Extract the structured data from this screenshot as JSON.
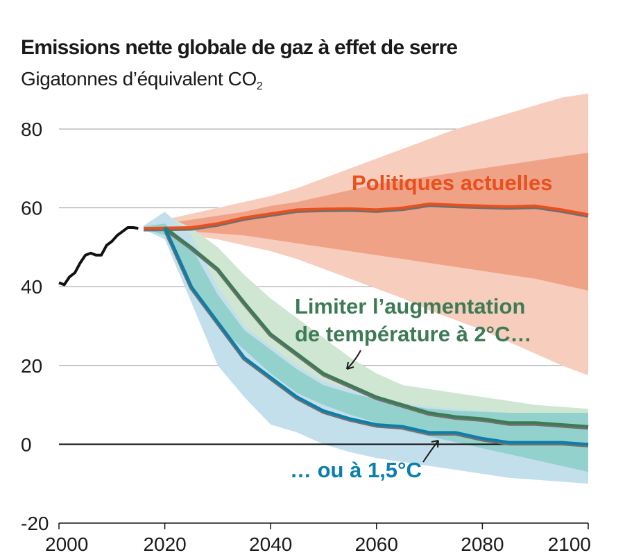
{
  "chart_data": {
    "type": "line",
    "title": "Emissions nette globale de gaz à effet de serre",
    "subtitle_main": "Gigatonnes d’équivalent CO",
    "subtitle_sub": "2",
    "xlim": [
      2000,
      2100
    ],
    "ylim": [
      -20,
      80
    ],
    "x_ticks": [
      2000,
      2020,
      2040,
      2060,
      2080,
      2100
    ],
    "y_ticks": [
      80,
      60,
      40,
      20,
      0,
      -20
    ],
    "grid": "horizontal",
    "colors": {
      "historical": "#111111",
      "current_policies": "#e8501e",
      "current_policies_inner": "#f0a287",
      "current_policies_outer": "#f7cdbd",
      "two_degrees": "#3d7b55",
      "two_degrees_band": "#cfe6d2",
      "one_five_degrees": "#0b7fac",
      "one_five_degrees_band": "#c4dfec",
      "overlap_band": "#8ecfca"
    },
    "historical": {
      "x": [
        2000,
        2001,
        2002,
        2003,
        2004,
        2005,
        2006,
        2007,
        2008,
        2009,
        2010,
        2011,
        2012,
        2013,
        2014,
        2015
      ],
      "y": [
        41,
        40.5,
        42.5,
        43.5,
        46,
        48,
        48.5,
        48,
        48,
        50.5,
        51.5,
        53,
        54,
        55,
        55,
        54.8
      ]
    },
    "bands": [
      {
        "key": "current_policies_outer",
        "color_key": "current_policies_outer",
        "x": [
          2016,
          2020,
          2025,
          2030,
          2035,
          2040,
          2045,
          2050,
          2055,
          2060,
          2065,
          2070,
          2075,
          2080,
          2085,
          2090,
          2095,
          2100
        ],
        "upper": [
          55.5,
          57,
          58.5,
          60,
          61.5,
          63,
          65,
          67.5,
          70,
          72.5,
          75,
          77.5,
          80,
          82,
          84,
          86,
          88,
          89
        ],
        "lower": [
          54.5,
          54,
          53,
          52,
          50.5,
          49,
          47,
          44.5,
          42,
          39.5,
          37,
          34,
          31.5,
          29,
          26,
          23,
          20,
          17.5
        ]
      },
      {
        "key": "current_policies_inner",
        "color_key": "current_policies_inner",
        "x": [
          2016,
          2020,
          2025,
          2030,
          2035,
          2040,
          2045,
          2050,
          2055,
          2060,
          2065,
          2070,
          2075,
          2080,
          2085,
          2090,
          2095,
          2100
        ],
        "upper": [
          55.3,
          56,
          57,
          58,
          59,
          60.5,
          61.5,
          63,
          64.5,
          66,
          67,
          68,
          69,
          70,
          71,
          72,
          73,
          74
        ],
        "lower": [
          54.7,
          54.5,
          54,
          53.5,
          53,
          52,
          51,
          50,
          49,
          48,
          47,
          46,
          45,
          44,
          43,
          42,
          40.5,
          39
        ]
      },
      {
        "key": "two_degrees",
        "color_key": "two_degrees_band",
        "x": [
          2016,
          2020,
          2025,
          2030,
          2035,
          2040,
          2045,
          2050,
          2055,
          2060,
          2065,
          2070,
          2075,
          2080,
          2085,
          2090,
          2095,
          2100
        ],
        "upper": [
          55.5,
          58,
          55,
          50,
          43,
          37,
          32,
          27,
          22,
          18,
          15,
          14,
          13,
          12,
          11,
          10,
          9.5,
          9
        ],
        "lower": [
          54.5,
          53,
          42,
          32,
          25,
          19,
          14,
          11,
          8.5,
          6,
          4,
          2.5,
          1,
          0,
          -0.5,
          -0.5,
          -0.5,
          -0.5
        ]
      },
      {
        "key": "one_five_degrees",
        "color_key": "one_five_degrees_band",
        "x": [
          2016,
          2020,
          2025,
          2030,
          2035,
          2040,
          2045,
          2050,
          2055,
          2060,
          2065,
          2070,
          2075,
          2080,
          2085,
          2090,
          2095,
          2100
        ],
        "upper": [
          55.5,
          59,
          53,
          40,
          30,
          25,
          20,
          16,
          14,
          12,
          10.5,
          9.5,
          9,
          8.5,
          8,
          8,
          8,
          8
        ],
        "lower": [
          54.5,
          52,
          36,
          20,
          12,
          5,
          3,
          0,
          -2,
          -3.5,
          -4.5,
          -5.5,
          -6.5,
          -7.5,
          -8.5,
          -9,
          -9.5,
          -10
        ]
      },
      {
        "key": "overlap",
        "color_key": "overlap_band",
        "x": [
          2016,
          2020,
          2025,
          2030,
          2035,
          2040,
          2045,
          2050,
          2055,
          2060,
          2065,
          2070,
          2075,
          2080,
          2085,
          2090,
          2095,
          2100
        ],
        "upper": [
          55.3,
          56,
          50,
          38,
          29,
          24,
          19,
          15,
          13,
          11.5,
          10,
          9,
          8.5,
          8.2,
          8,
          8,
          8,
          8
        ],
        "lower": [
          54.7,
          53,
          40,
          30,
          24,
          18,
          13,
          10,
          7.5,
          5.5,
          3.5,
          2,
          0.5,
          -1,
          -2.5,
          -4,
          -5.5,
          -7
        ]
      }
    ],
    "series": [
      {
        "name": "Politiques actuelles",
        "color_key": "current_policies",
        "x": [
          2016,
          2020,
          2025,
          2030,
          2035,
          2040,
          2045,
          2050,
          2055,
          2060,
          2065,
          2070,
          2075,
          2080,
          2085,
          2090,
          2095,
          2100
        ],
        "y": [
          54.8,
          54.9,
          55,
          56,
          57.5,
          58.5,
          59.5,
          59.7,
          59.8,
          59.5,
          60,
          61,
          60.7,
          60.5,
          60.3,
          60.5,
          59.5,
          58.3
        ]
      },
      {
        "name": "Limiter l’augmentation de température à 2°C…",
        "color_key": "two_degrees",
        "x": [
          2020,
          2025,
          2030,
          2035,
          2040,
          2045,
          2050,
          2055,
          2060,
          2065,
          2070,
          2075,
          2080,
          2085,
          2090,
          2095,
          2100
        ],
        "y": [
          55,
          50,
          44.5,
          36,
          28,
          23,
          18,
          15,
          12,
          10,
          8,
          7,
          6.5,
          5.5,
          5.5,
          5,
          4.5
        ]
      },
      {
        "name": "… ou à 1,5°C",
        "color_key": "one_five_degrees",
        "x": [
          2020,
          2025,
          2030,
          2035,
          2040,
          2045,
          2050,
          2055,
          2060,
          2065,
          2070,
          2075,
          2080,
          2085,
          2090,
          2095,
          2100
        ],
        "y": [
          55,
          40,
          31,
          22,
          17,
          12,
          8.5,
          6.5,
          5,
          4.5,
          3,
          3,
          1.5,
          0.5,
          0.5,
          0.5,
          0
        ]
      }
    ],
    "labels": {
      "current_policies": "Politiques actuelles",
      "two_degrees_line1": "Limiter l’augmentation",
      "two_degrees_line2": "de température à 2°C…",
      "one_five_degrees": "… ou à 1,5°C"
    }
  }
}
